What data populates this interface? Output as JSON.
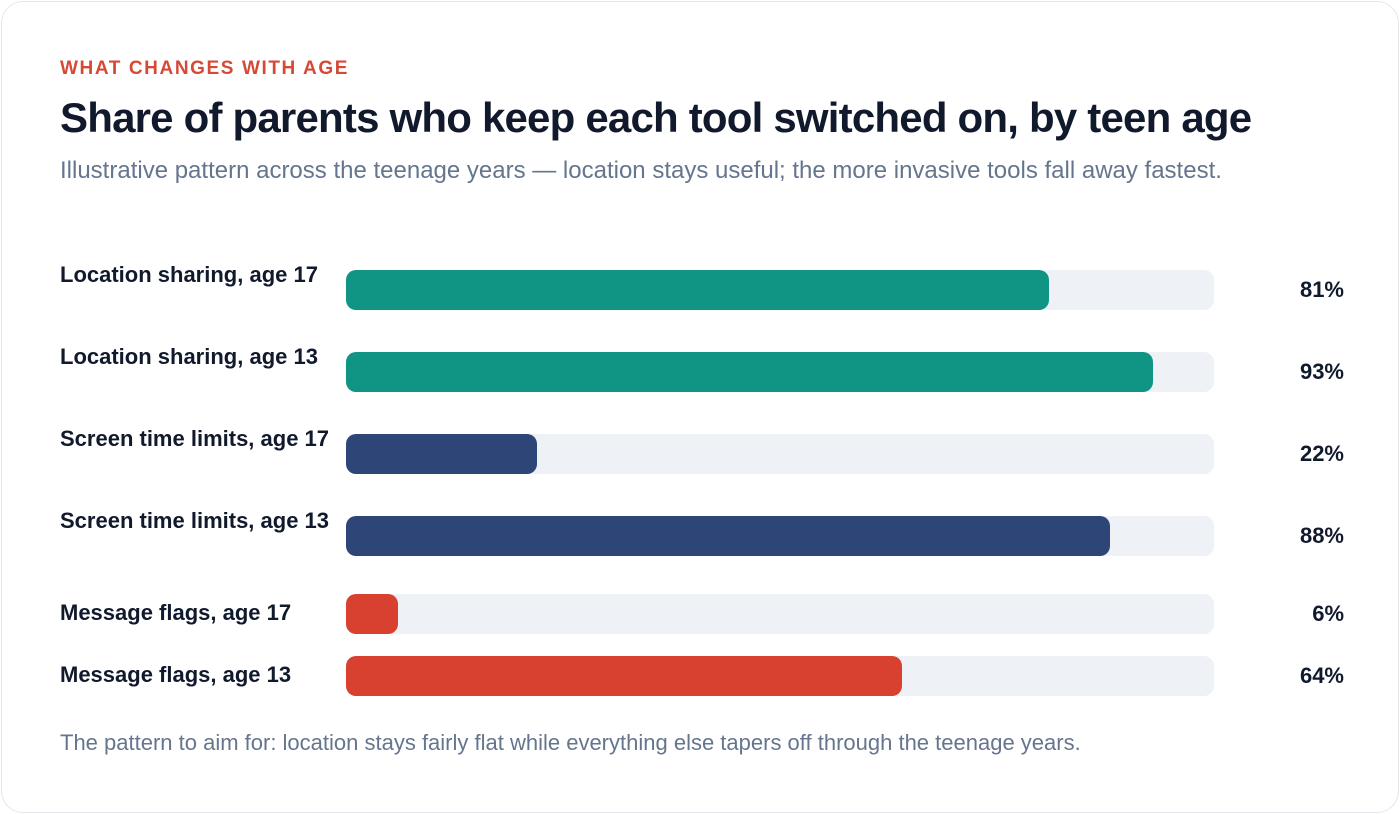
{
  "header": {
    "eyebrow": "WHAT CHANGES WITH AGE",
    "title": "Share of parents who keep each tool switched on, by teen age",
    "subtitle": "Illustrative pattern across the teenage years — location stays useful; the more invasive tools fall away fastest."
  },
  "footnote": "The pattern to aim for: location stays fairly flat while everything else tapers off through the teenage years.",
  "colors": {
    "location": "#109585",
    "screen_time": "#2e4577",
    "message_flags": "#d84030",
    "track": "#eef1f5"
  },
  "chart_data": {
    "type": "bar",
    "orientation": "horizontal",
    "categories": [
      "Location sharing, age 17",
      "Location sharing, age 13",
      "Screen time limits, age 17",
      "Screen time limits, age 13",
      "Message flags, age 17",
      "Message flags, age 13"
    ],
    "values": [
      81,
      93,
      22,
      88,
      6,
      64
    ],
    "value_labels": [
      "81%",
      "93%",
      "22%",
      "88%",
      "6%",
      "64%"
    ],
    "groups": [
      "location",
      "location",
      "screen_time",
      "screen_time",
      "message_flags",
      "message_flags"
    ],
    "xlim": [
      0,
      100
    ],
    "grid": false,
    "legend": "none"
  }
}
